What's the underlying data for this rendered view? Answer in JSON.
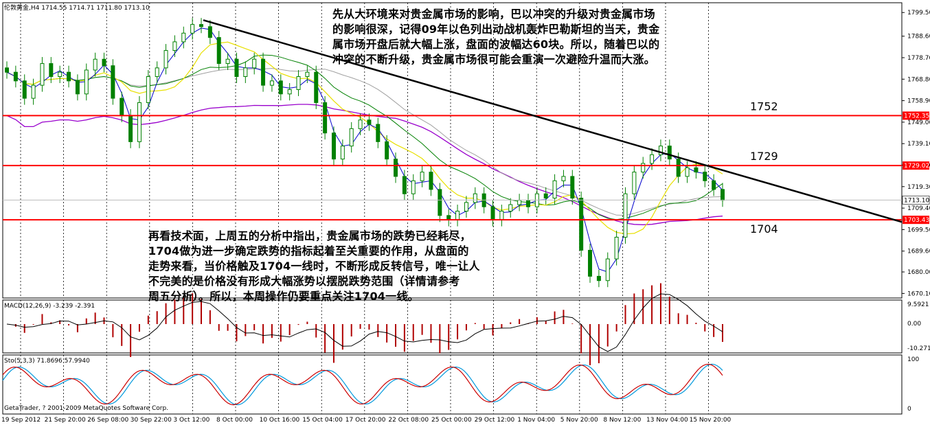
{
  "chart_data": {
    "type": "candlestick",
    "symbol_header": "伦敦黄金,H4 1714.55 1714.71 1711.80 1713.10",
    "price_axis_ticks": [
      "1799.50",
      "1788.60",
      "1778.70",
      "1768.80",
      "1758.90",
      "1749.00",
      "1739.10",
      "1729.20",
      "1719.30",
      "1709.40",
      "1699.50",
      "1689.60",
      "1680.00",
      "1670.10"
    ],
    "time_axis_ticks": [
      "19 Sep 2012",
      "21 Sep 20:00",
      "26 Sep 08:00",
      "30 Sep 22:00",
      "3 Oct 12:00",
      "8 Oct 00:00",
      "10 Oct 16:00",
      "15 Oct 04:00",
      "17 Oct 20:00",
      "22 Oct 08:00",
      "25 Oct 00:00",
      "29 Oct 12:00",
      "1 Nov 04:00",
      "5 Nov 20:00",
      "8 Nov 12:00",
      "13 Nov 04:00",
      "15 Nov 20:00"
    ],
    "ylim": [
      1668,
      1804
    ],
    "close_series": [
      1772,
      1768,
      1760,
      1766,
      1776,
      1770,
      1772,
      1768,
      1762,
      1773,
      1778,
      1775,
      1760,
      1752,
      1740,
      1758,
      1770,
      1774,
      1782,
      1786,
      1790,
      1794,
      1793,
      1788,
      1776,
      1778,
      1770,
      1774,
      1778,
      1766,
      1768,
      1762,
      1764,
      1770,
      1772,
      1758,
      1744,
      1732,
      1738,
      1746,
      1750,
      1748,
      1740,
      1732,
      1724,
      1716,
      1722,
      1726,
      1718,
      1706,
      1704,
      1708,
      1712,
      1716,
      1710,
      1704,
      1708,
      1711,
      1713,
      1710,
      1716,
      1714,
      1722,
      1724,
      1714,
      1690,
      1678,
      1676,
      1686,
      1696,
      1716,
      1726,
      1730,
      1734,
      1738,
      1732,
      1724,
      1728,
      1726,
      1722,
      1718,
      1713
    ],
    "levels": [
      {
        "value": 1752,
        "label": "1752",
        "tag": "1752.35"
      },
      {
        "value": 1729,
        "label": "1729",
        "tag": "1729.02"
      },
      {
        "value": 1704,
        "label": "1704",
        "tag": "1703.43"
      }
    ],
    "current_price_tag": "1713.10",
    "trendline": {
      "from_price": 1796,
      "to_price": 1703
    },
    "macd": {
      "label": "MACD(12,26,9) -3.239 -2.391",
      "ticks": [
        "9.5921",
        "0.00",
        "-10.271"
      ]
    },
    "stochastic": {
      "label": "Sto(5,3,3) 71.8696 57.9940",
      "ticks": [
        "100",
        "0"
      ]
    },
    "copyright": "GetaTrader, ? 2001-2009 MetaQuotes Software Corp."
  },
  "annotations": {
    "top_text": [
      "先从大环境来对贵金属市场的影响，巴以冲突的升级对贵金属市场",
      "的影响很深，记得09年以色列出动战机轰炸巴勒斯坦的当天，贵金",
      "属市场开盘后就大幅上涨，盘面的波幅达60块。所以，随着巴以的",
      "冲突的不断升级，贵金属市场很可能会重演一次避险升温而大涨。"
    ],
    "bottom_text": [
      "再看技术面，上周五的分析中指出，贵金属市场的跌势已经耗尽，",
      "1704做为进一步确定跌势的指标起着至关重要的作用，从盘面的",
      "走势来看，当价格触及1704一线时，不断形成反转信号，唯一让人",
      "不完美的是价格没有形成大幅涨势以摆脱跌势范围（详情请参考",
      "周五分析）。所以，本周操作仍要重点关注1704一线。"
    ]
  },
  "colors": {
    "candle": "#008000",
    "candle_down": "#c00000",
    "level_line": "#ff0000",
    "trendline": "#000000",
    "ma_fast": "#0000cc",
    "ma_yellow": "#e8e000",
    "ma_green": "#008000",
    "ma_gray": "#a0a0a0",
    "ma_purple": "#9900cc",
    "macd_bar": "#b00000",
    "stoch_main": "#0099dd",
    "stoch_signal": "#cc0000"
  }
}
